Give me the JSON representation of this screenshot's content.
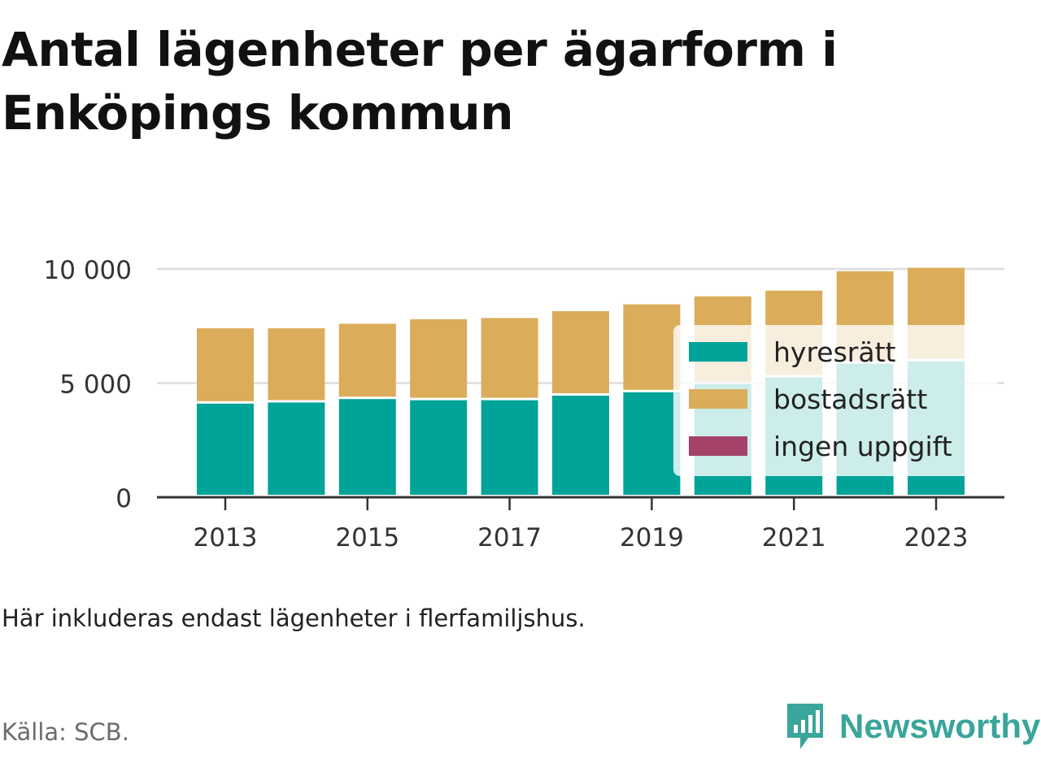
{
  "title": "Antal lägenheter per ägarform i Enköpings kommun",
  "note": "Här inkluderas endast lägenheter i flerfamiljshus.",
  "source": "Källa: SCB.",
  "brand": {
    "name": "Newsworthy",
    "icon": "chart-speech-bubble-icon",
    "color": "#3aa59b"
  },
  "chart_data": {
    "type": "bar",
    "stacked": true,
    "categories": [
      "2013",
      "2014",
      "2015",
      "2016",
      "2017",
      "2018",
      "2019",
      "2020",
      "2021",
      "2022",
      "2023"
    ],
    "x_tick_labels": [
      "2013",
      "2015",
      "2017",
      "2019",
      "2021",
      "2023"
    ],
    "y_ticks": [
      0,
      5000,
      10000
    ],
    "y_tick_labels": [
      "0",
      "5 000",
      "10 000"
    ],
    "ylim": [
      0,
      10100
    ],
    "grid": true,
    "legend": "right, overlapping bars",
    "series": [
      {
        "name": "hyresrätt",
        "color": "#00a398",
        "values": [
          4100,
          4150,
          4300,
          4250,
          4250,
          4450,
          4600,
          4950,
          5250,
          5850,
          5950
        ]
      },
      {
        "name": "bostadsrätt",
        "color": "#dbac5a",
        "values": [
          3300,
          3250,
          3300,
          3550,
          3600,
          3700,
          3850,
          3850,
          3800,
          4050,
          4100
        ]
      },
      {
        "name": "ingen uppgift",
        "color": "#a4426a",
        "values": [
          0,
          0,
          0,
          0,
          0,
          0,
          0,
          0,
          0,
          0,
          0
        ]
      }
    ]
  }
}
